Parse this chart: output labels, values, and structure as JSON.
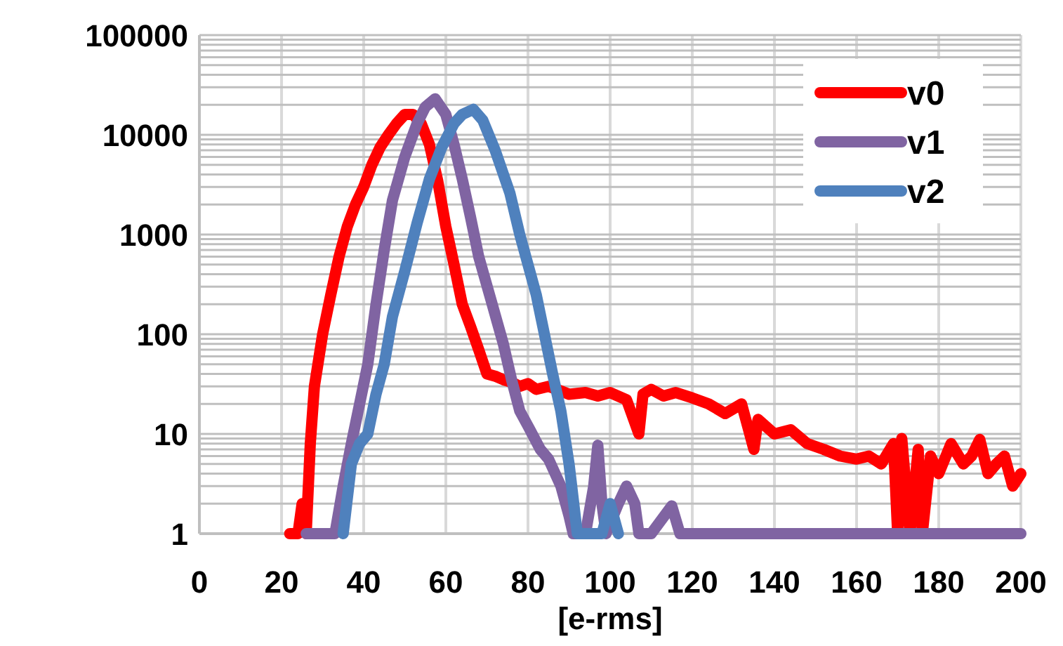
{
  "chart_data": {
    "type": "line",
    "xlabel": "[e-rms]",
    "log": "y",
    "grid": true,
    "legend": "top right",
    "marker": "none",
    "line_style": "solid",
    "xlim": [
      0,
      200
    ],
    "xticks": [
      0,
      20,
      40,
      60,
      80,
      100,
      120,
      140,
      160,
      180,
      200
    ],
    "ylim": [
      1,
      100000
    ],
    "yticks": [
      1,
      10,
      100,
      1000,
      10000,
      100000
    ],
    "series": [
      {
        "name": "v0",
        "color": "#ff0000",
        "x": [
          22,
          24,
          25,
          26,
          27,
          28,
          30,
          32,
          34,
          36,
          38,
          40,
          42,
          44,
          46,
          48,
          50,
          52,
          54,
          56,
          58,
          60,
          62,
          64,
          66,
          68,
          70,
          72,
          74,
          76,
          78,
          80,
          82,
          85,
          88,
          90,
          94,
          97,
          100,
          104,
          107,
          108,
          110,
          113,
          116,
          120,
          124,
          128,
          132,
          135,
          136,
          140,
          144,
          148,
          152,
          156,
          160,
          163,
          166,
          169,
          170,
          171,
          173,
          175,
          176,
          178,
          180,
          183,
          186,
          188,
          190,
          192,
          194,
          196,
          198,
          200
        ],
        "values": [
          1,
          1,
          2,
          1,
          8,
          30,
          100,
          250,
          600,
          1200,
          2000,
          3000,
          5000,
          7500,
          10000,
          13000,
          16000,
          16000,
          13000,
          8000,
          3500,
          1200,
          500,
          200,
          120,
          70,
          40,
          38,
          35,
          33,
          30,
          32,
          28,
          30,
          27,
          25,
          26,
          24,
          26,
          22,
          10,
          25,
          28,
          24,
          26,
          23,
          20,
          16,
          20,
          7,
          14,
          10,
          11,
          8,
          7,
          6,
          5.6,
          6,
          5,
          8,
          1,
          9,
          1,
          7,
          1,
          6,
          4,
          8,
          5,
          6,
          8.8,
          4,
          5,
          6,
          3,
          4
        ]
      },
      {
        "name": "v1",
        "color": "#8064a2",
        "x": [
          26,
          33,
          35,
          37,
          39,
          41,
          43,
          45,
          47,
          50,
          53,
          55,
          57.4,
          60,
          62,
          64,
          66,
          68,
          71,
          74,
          76,
          78,
          80,
          83,
          85,
          88,
          90,
          91,
          94,
          96,
          97,
          98,
          99,
          102,
          104,
          106,
          107,
          110,
          115,
          117,
          200
        ],
        "values": [
          1,
          1,
          3,
          8,
          20,
          50,
          200,
          700,
          2200,
          6000,
          13000,
          19000,
          23000,
          16000,
          8000,
          3600,
          1500,
          600,
          220,
          80,
          35,
          17,
          12,
          7,
          5.6,
          3,
          1.5,
          1,
          1,
          3,
          7.7,
          2,
          1,
          2,
          3,
          2,
          1,
          1,
          1.9,
          1,
          1
        ]
      },
      {
        "name": "v2",
        "color": "#4f81bd",
        "x": [
          35,
          37,
          39,
          41,
          43,
          45,
          47,
          50,
          53,
          56,
          59,
          62,
          64,
          66.7,
          69,
          72,
          75.6,
          78,
          80,
          82,
          84,
          86,
          88,
          90,
          92,
          96,
          98,
          100,
          102
        ],
        "values": [
          1,
          5,
          8,
          10,
          25,
          50,
          150,
          430,
          1300,
          3600,
          7500,
          13000,
          16000,
          18000,
          14000,
          7000,
          2600,
          1000,
          500,
          250,
          100,
          40,
          17,
          5,
          1,
          1,
          1,
          2,
          1
        ]
      }
    ]
  }
}
